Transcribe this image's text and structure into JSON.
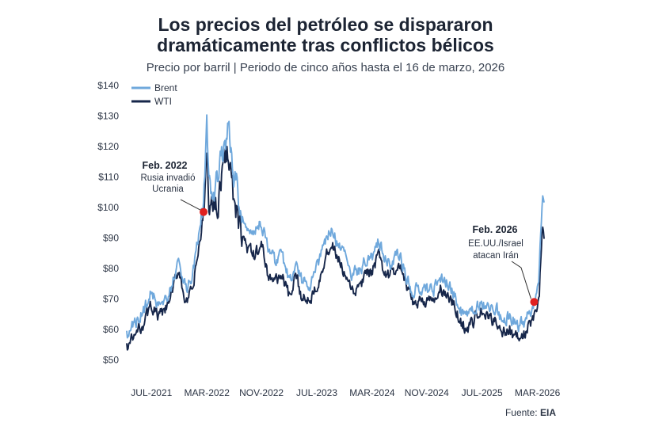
{
  "header": {
    "title_line1": "Los precios del petróleo se dispararon",
    "title_line2": "dramáticamente tras conflictos bélicos",
    "subtitle": "Precio por barril | Periodo de cinco años hasta el 16 de marzo, 2026"
  },
  "footer": {
    "source_label": "Fuente:",
    "source_value": "EIA"
  },
  "colors": {
    "brent": "#6fa8dc",
    "wti": "#16264a",
    "marker": "#e0201f",
    "leader": "#333333"
  },
  "chart_data": {
    "type": "line",
    "title": "Los precios del petróleo se dispararon dramáticamente tras conflictos bélicos",
    "subtitle": "Precio por barril | Periodo de cinco años hasta el 16 de marzo, 2026",
    "xlabel": "",
    "ylabel": "",
    "x_range": [
      2021.2,
      2026.26
    ],
    "ylim": [
      48,
      140
    ],
    "y_ticks": [
      50,
      60,
      70,
      80,
      90,
      100,
      110,
      120,
      130,
      140
    ],
    "y_tick_labels": [
      "$50",
      "$60",
      "$70",
      "$80",
      "$90",
      "$100",
      "$110",
      "$120",
      "$130",
      "$140"
    ],
    "x_ticks": [
      2021.5,
      2022.17,
      2022.83,
      2023.5,
      2024.17,
      2024.83,
      2025.5,
      2026.17
    ],
    "x_tick_labels": [
      "JUL-2021",
      "MAR-2022",
      "NOV-2022",
      "JUL-2023",
      "MAR-2024",
      "NOV-2024",
      "JUL-2025",
      "MAR-2026"
    ],
    "legend": {
      "position": "top-left"
    },
    "series": [
      {
        "name": "Brent",
        "points": [
          [
            2021.2,
            58
          ],
          [
            2021.3,
            62
          ],
          [
            2021.4,
            66
          ],
          [
            2021.5,
            72
          ],
          [
            2021.58,
            68
          ],
          [
            2021.67,
            70
          ],
          [
            2021.75,
            75
          ],
          [
            2021.83,
            82
          ],
          [
            2021.92,
            73
          ],
          [
            2022.0,
            78
          ],
          [
            2022.08,
            92
          ],
          [
            2022.13,
            100
          ],
          [
            2022.17,
            128
          ],
          [
            2022.19,
            110
          ],
          [
            2022.22,
            106
          ],
          [
            2022.3,
            108
          ],
          [
            2022.38,
            120
          ],
          [
            2022.43,
            125
          ],
          [
            2022.5,
            110
          ],
          [
            2022.58,
            100
          ],
          [
            2022.67,
            94
          ],
          [
            2022.75,
            92
          ],
          [
            2022.83,
            95
          ],
          [
            2022.92,
            85
          ],
          [
            2023.0,
            82
          ],
          [
            2023.08,
            84
          ],
          [
            2023.17,
            76
          ],
          [
            2023.25,
            82
          ],
          [
            2023.33,
            75
          ],
          [
            2023.42,
            75
          ],
          [
            2023.5,
            80
          ],
          [
            2023.58,
            86
          ],
          [
            2023.67,
            93
          ],
          [
            2023.75,
            88
          ],
          [
            2023.83,
            84
          ],
          [
            2023.92,
            78
          ],
          [
            2024.0,
            79
          ],
          [
            2024.08,
            82
          ],
          [
            2024.17,
            84
          ],
          [
            2024.25,
            89
          ],
          [
            2024.33,
            83
          ],
          [
            2024.42,
            82
          ],
          [
            2024.5,
            85
          ],
          [
            2024.58,
            78
          ],
          [
            2024.67,
            72
          ],
          [
            2024.75,
            74
          ],
          [
            2024.83,
            73
          ],
          [
            2024.92,
            73
          ],
          [
            2025.0,
            77
          ],
          [
            2025.08,
            75
          ],
          [
            2025.17,
            71
          ],
          [
            2025.25,
            66
          ],
          [
            2025.33,
            64
          ],
          [
            2025.42,
            68
          ],
          [
            2025.5,
            69
          ],
          [
            2025.58,
            67
          ],
          [
            2025.67,
            67
          ],
          [
            2025.75,
            63
          ],
          [
            2025.83,
            64
          ],
          [
            2025.92,
            61
          ],
          [
            2026.0,
            62
          ],
          [
            2026.08,
            66
          ],
          [
            2026.13,
            68
          ],
          [
            2026.17,
            73
          ],
          [
            2026.19,
            79
          ],
          [
            2026.21,
            90
          ],
          [
            2026.23,
            103
          ],
          [
            2026.25,
            98
          ]
        ]
      },
      {
        "name": "WTI",
        "points": [
          [
            2021.2,
            54
          ],
          [
            2021.3,
            58
          ],
          [
            2021.4,
            62
          ],
          [
            2021.5,
            68
          ],
          [
            2021.58,
            64
          ],
          [
            2021.67,
            66
          ],
          [
            2021.75,
            72
          ],
          [
            2021.83,
            80
          ],
          [
            2021.92,
            68
          ],
          [
            2022.0,
            73
          ],
          [
            2022.08,
            88
          ],
          [
            2022.13,
            95
          ],
          [
            2022.17,
            118
          ],
          [
            2022.19,
            102
          ],
          [
            2022.22,
            100
          ],
          [
            2022.3,
            102
          ],
          [
            2022.38,
            116
          ],
          [
            2022.43,
            120
          ],
          [
            2022.5,
            100
          ],
          [
            2022.58,
            92
          ],
          [
            2022.67,
            86
          ],
          [
            2022.75,
            84
          ],
          [
            2022.83,
            88
          ],
          [
            2022.92,
            77
          ],
          [
            2023.0,
            76
          ],
          [
            2023.08,
            78
          ],
          [
            2023.17,
            70
          ],
          [
            2023.25,
            77
          ],
          [
            2023.33,
            70
          ],
          [
            2023.42,
            70
          ],
          [
            2023.5,
            75
          ],
          [
            2023.58,
            81
          ],
          [
            2023.67,
            88
          ],
          [
            2023.75,
            84
          ],
          [
            2023.83,
            78
          ],
          [
            2023.92,
            72
          ],
          [
            2024.0,
            73
          ],
          [
            2024.08,
            77
          ],
          [
            2024.17,
            79
          ],
          [
            2024.25,
            84
          ],
          [
            2024.33,
            78
          ],
          [
            2024.42,
            78
          ],
          [
            2024.5,
            81
          ],
          [
            2024.58,
            74
          ],
          [
            2024.67,
            68
          ],
          [
            2024.75,
            70
          ],
          [
            2024.83,
            69
          ],
          [
            2024.92,
            69
          ],
          [
            2025.0,
            73
          ],
          [
            2025.08,
            71
          ],
          [
            2025.17,
            67
          ],
          [
            2025.25,
            62
          ],
          [
            2025.33,
            60
          ],
          [
            2025.42,
            64
          ],
          [
            2025.5,
            66
          ],
          [
            2025.58,
            63
          ],
          [
            2025.67,
            63
          ],
          [
            2025.75,
            59
          ],
          [
            2025.83,
            60
          ],
          [
            2025.92,
            57
          ],
          [
            2026.0,
            58
          ],
          [
            2026.08,
            62
          ],
          [
            2026.13,
            63
          ],
          [
            2026.17,
            67
          ],
          [
            2026.19,
            72
          ],
          [
            2026.21,
            82
          ],
          [
            2026.23,
            95
          ],
          [
            2026.25,
            91
          ]
        ]
      }
    ],
    "annotations": [
      {
        "title": "Feb. 2022",
        "lines": [
          "Rusia invadió",
          "Ucrania"
        ],
        "x": 2022.13,
        "y": 98.5,
        "align": "center-left"
      },
      {
        "title": "Feb. 2026",
        "lines": [
          "EE.UU./Israel",
          "atacan Irán"
        ],
        "x": 2026.13,
        "y": 69,
        "align": "center-right"
      }
    ]
  }
}
